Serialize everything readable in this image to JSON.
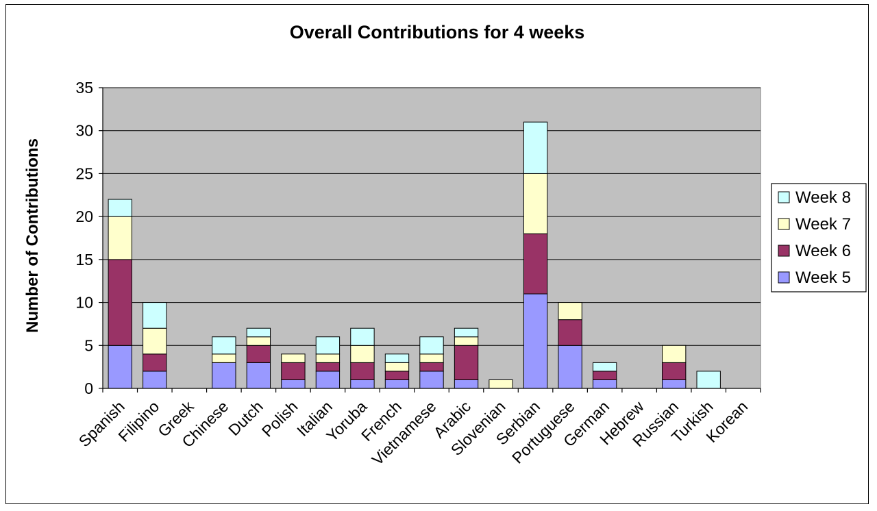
{
  "chart_data": {
    "type": "bar",
    "stacked": true,
    "title": "Overall Contributions for 4 weeks",
    "xlabel": "",
    "ylabel": "Number of Contributions",
    "ylim": [
      0,
      35
    ],
    "yticks": [
      "0",
      "5",
      "10",
      "15",
      "20",
      "25",
      "30",
      "35"
    ],
    "grid": true,
    "legend_position": "right",
    "plot_background": "#c0c0c0",
    "categories": [
      "Spanish",
      "Filipino",
      "Greek",
      "Chinese",
      "Dutch",
      "Polish",
      "Italian",
      "Yoruba",
      "French",
      "Vietnamese",
      "Arabic",
      "Slovenian",
      "Serbian",
      "Portuguese",
      "German",
      "Hebrew",
      "Russian",
      "Turkish",
      "Korean"
    ],
    "series": [
      {
        "name": "Week 5",
        "color": "#9999ff",
        "values": [
          5,
          2,
          0,
          3,
          3,
          1,
          2,
          1,
          1,
          2,
          1,
          0,
          11,
          5,
          1,
          0,
          1,
          0,
          0
        ]
      },
      {
        "name": "Week 6",
        "color": "#993366",
        "values": [
          10,
          2,
          0,
          0,
          2,
          2,
          1,
          2,
          1,
          1,
          4,
          0,
          7,
          3,
          1,
          0,
          2,
          0,
          0
        ]
      },
      {
        "name": "Week 7",
        "color": "#ffffcc",
        "values": [
          5,
          3,
          0,
          1,
          1,
          1,
          1,
          2,
          1,
          1,
          1,
          1,
          7,
          2,
          0,
          0,
          2,
          0,
          0
        ]
      },
      {
        "name": "Week 8",
        "color": "#ccffff",
        "values": [
          2,
          3,
          0,
          2,
          1,
          0,
          2,
          2,
          1,
          2,
          1,
          0,
          6,
          0,
          1,
          0,
          0,
          2,
          0
        ]
      }
    ]
  }
}
